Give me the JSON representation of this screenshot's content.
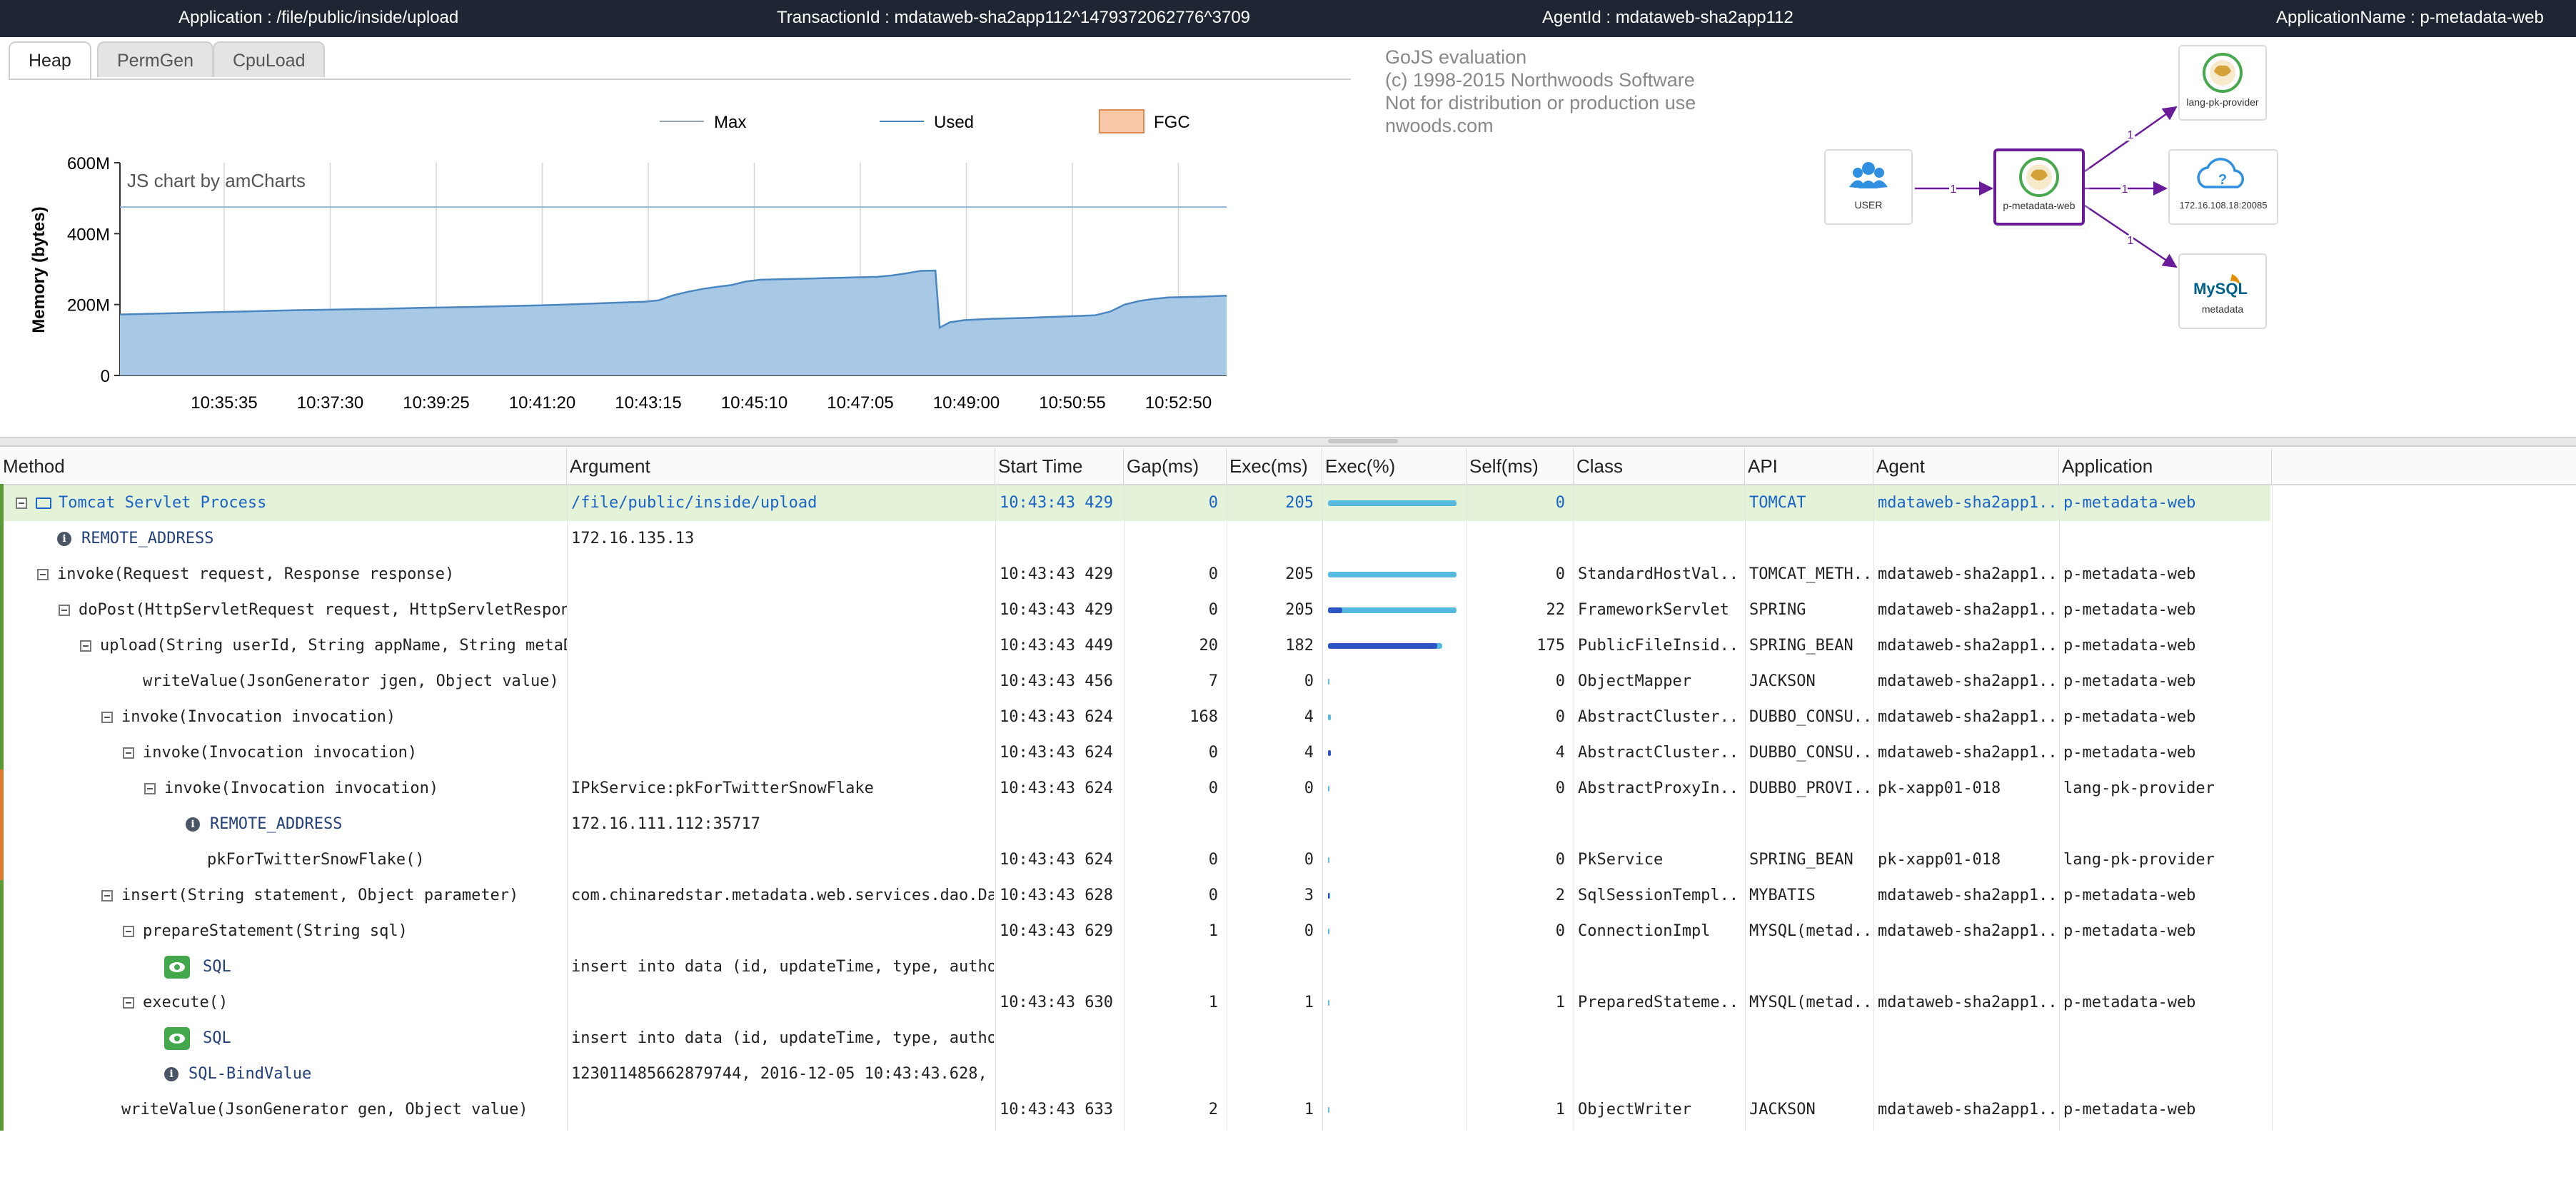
{
  "header": {
    "application": "Application : /file/public/inside/upload",
    "transaction": "TransactionId : mdataweb-sha2app112^1479372062776^3709",
    "agent": "AgentId : mdataweb-sha2app112",
    "application_name": "ApplicationName : p-metadata-web"
  },
  "tabs": [
    {
      "label": "Heap",
      "active": true
    },
    {
      "label": "PermGen",
      "active": false
    },
    {
      "label": "CpuLoad",
      "active": false
    }
  ],
  "chart_data": {
    "type": "area",
    "credit": "JS chart by amCharts",
    "ylabel": "Memory (bytes)",
    "yticks": [
      "0",
      "200M",
      "400M",
      "600M"
    ],
    "ylim": [
      0,
      600
    ],
    "xticks": [
      "10:35:35",
      "10:37:30",
      "10:39:25",
      "10:41:20",
      "10:43:15",
      "10:45:10",
      "10:47:05",
      "10:49:00",
      "10:50:55",
      "10:52:50"
    ],
    "legend": [
      {
        "name": "Max",
        "color": "#9aa6b8"
      },
      {
        "name": "Used",
        "color": "#4a86c0"
      },
      {
        "name": "FGC",
        "color": "#f8c8a8"
      }
    ],
    "max_value": 475,
    "used": [
      [
        0,
        172
      ],
      [
        3,
        175
      ],
      [
        6,
        178
      ],
      [
        9,
        181
      ],
      [
        12,
        184
      ],
      [
        15,
        186
      ],
      [
        18,
        188
      ],
      [
        21,
        191
      ],
      [
        24,
        193
      ],
      [
        27,
        196
      ],
      [
        30,
        199
      ],
      [
        32,
        202
      ],
      [
        34,
        205
      ],
      [
        36,
        208
      ],
      [
        37,
        212
      ],
      [
        38,
        226
      ],
      [
        39,
        236
      ],
      [
        40,
        244
      ],
      [
        41,
        250
      ],
      [
        42,
        255
      ],
      [
        43,
        265
      ],
      [
        44,
        270
      ],
      [
        46,
        272
      ],
      [
        48,
        274
      ],
      [
        50,
        276
      ],
      [
        52,
        278
      ],
      [
        53,
        282
      ],
      [
        54,
        288
      ],
      [
        55,
        295
      ],
      [
        56,
        296
      ],
      [
        56.3,
        135
      ],
      [
        57,
        150
      ],
      [
        58,
        156
      ],
      [
        60,
        160
      ],
      [
        62,
        162
      ],
      [
        64,
        165
      ],
      [
        66,
        168
      ],
      [
        67,
        170
      ],
      [
        68,
        180
      ],
      [
        69,
        200
      ],
      [
        70,
        210
      ],
      [
        71,
        216
      ],
      [
        72,
        220
      ],
      [
        74,
        222
      ],
      [
        76,
        225
      ]
    ],
    "x_range": [
      0,
      76
    ]
  },
  "diagram": {
    "watermark": "GoJS evaluation\n(c) 1998-2015 Northwoods Software\nNot for distribution or production use\nnwoods.com",
    "nodes": [
      {
        "id": "user",
        "label": "USER",
        "icon": "users-icon"
      },
      {
        "id": "p-metadata-web",
        "label": "p-metadata-web",
        "icon": "tomcat-icon"
      },
      {
        "id": "lang-pk-provider",
        "label": "lang-pk-provider",
        "icon": "tomcat-icon"
      },
      {
        "id": "ip",
        "label": "172.16.108.18:20085",
        "icon": "cloud-icon"
      },
      {
        "id": "mysql",
        "label": "metadata",
        "icon": "mysql-icon"
      }
    ],
    "mysql_logo": "MySQL",
    "edges": [
      {
        "from": "user",
        "to": "p-metadata-web",
        "label": "1"
      },
      {
        "from": "p-metadata-web",
        "to": "lang-pk-provider",
        "label": "1"
      },
      {
        "from": "p-metadata-web",
        "to": "ip",
        "label": "1"
      },
      {
        "from": "p-metadata-web",
        "to": "mysql",
        "label": "1"
      }
    ]
  },
  "table": {
    "columns": [
      "Method",
      "Argument",
      "Start Time",
      "Gap(ms)",
      "Exec(ms)",
      "Exec(%)",
      "Self(ms)",
      "Class",
      "API",
      "Agent",
      "Application"
    ],
    "rows": [
      {
        "indent": 0,
        "toggle": true,
        "icon": "server",
        "method": "Tomcat Servlet Process",
        "arg": "/file/public/inside/upload",
        "start": "10:43:43 429",
        "gap": "0",
        "exec": "205",
        "pct": 1.0,
        "selfpct": 0,
        "self": "0",
        "cls": "",
        "api": "TOMCAT",
        "agent": "mdataweb-sha2app1..",
        "app": "p-metadata-web",
        "hl": true
      },
      {
        "indent": 1,
        "toggle": false,
        "icon": "info",
        "method": "REMOTE_ADDRESS",
        "arg": "172.16.135.13",
        "start": "",
        "gap": "",
        "exec": "",
        "pct": null,
        "self": "",
        "cls": "",
        "api": "",
        "agent": "",
        "app": ""
      },
      {
        "indent": 1,
        "toggle": true,
        "icon": "",
        "method": "invoke(Request request, Response response)",
        "arg": "",
        "start": "10:43:43 429",
        "gap": "0",
        "exec": "205",
        "pct": 1.0,
        "selfpct": 0,
        "self": "0",
        "cls": "StandardHostVal..",
        "api": "TOMCAT_METH..",
        "agent": "mdataweb-sha2app1..",
        "app": "p-metadata-web"
      },
      {
        "indent": 2,
        "toggle": true,
        "icon": "",
        "method": "doPost(HttpServletRequest request, HttpServletResponse response)",
        "arg": "",
        "start": "10:43:43 429",
        "gap": "0",
        "exec": "205",
        "pct": 1.0,
        "selfpct": 0.11,
        "self": "22",
        "cls": "FrameworkServlet",
        "api": "SPRING",
        "agent": "mdataweb-sha2app1..",
        "app": "p-metadata-web"
      },
      {
        "indent": 3,
        "toggle": true,
        "icon": "",
        "method": "upload(String userId, String appName, String metaData)",
        "arg": "",
        "start": "10:43:43 449",
        "gap": "20",
        "exec": "182",
        "pct": 0.89,
        "selfpct": 0.85,
        "self": "175",
        "cls": "PublicFileInsid..",
        "api": "SPRING_BEAN",
        "agent": "mdataweb-sha2app1..",
        "app": "p-metadata-web"
      },
      {
        "indent": 5,
        "toggle": false,
        "icon": "",
        "method": "writeValue(JsonGenerator jgen, Object value)",
        "arg": "",
        "start": "10:43:43 456",
        "gap": "7",
        "exec": "0",
        "pct": 0.005,
        "selfpct": 0,
        "self": "0",
        "cls": "ObjectMapper",
        "api": "JACKSON",
        "agent": "mdataweb-sha2app1..",
        "app": "p-metadata-web"
      },
      {
        "indent": 4,
        "toggle": true,
        "icon": "",
        "method": "invoke(Invocation invocation)",
        "arg": "",
        "start": "10:43:43 624",
        "gap": "168",
        "exec": "4",
        "pct": 0.02,
        "selfpct": 0,
        "self": "0",
        "cls": "AbstractCluster..",
        "api": "DUBBO_CONSU..",
        "agent": "mdataweb-sha2app1..",
        "app": "p-metadata-web"
      },
      {
        "indent": 5,
        "toggle": true,
        "icon": "",
        "method": "invoke(Invocation invocation)",
        "arg": "",
        "start": "10:43:43 624",
        "gap": "0",
        "exec": "4",
        "pct": 0.02,
        "selfpct": 0.02,
        "self": "4",
        "cls": "AbstractCluster..",
        "api": "DUBBO_CONSU..",
        "agent": "mdataweb-sha2app1..",
        "app": "p-metadata-web"
      },
      {
        "indent": 6,
        "toggle": true,
        "icon": "",
        "method": "invoke(Invocation invocation)",
        "arg": "IPkService:pkForTwitterSnowFlake",
        "start": "10:43:43 624",
        "gap": "0",
        "exec": "0",
        "pct": 0.005,
        "selfpct": 0,
        "self": "0",
        "cls": "AbstractProxyIn..",
        "api": "DUBBO_PROVI..",
        "agent": "pk-xapp01-018",
        "app": "lang-pk-provider"
      },
      {
        "indent": 7,
        "toggle": false,
        "icon": "info",
        "method": "REMOTE_ADDRESS",
        "arg": "172.16.111.112:35717",
        "start": "",
        "gap": "",
        "exec": "",
        "pct": null,
        "self": "",
        "cls": "",
        "api": "",
        "agent": "",
        "app": ""
      },
      {
        "indent": 8,
        "toggle": false,
        "icon": "",
        "method": "pkForTwitterSnowFlake()",
        "arg": "",
        "start": "10:43:43 624",
        "gap": "0",
        "exec": "0",
        "pct": 0.005,
        "selfpct": 0,
        "self": "0",
        "cls": "PkService",
        "api": "SPRING_BEAN",
        "agent": "pk-xapp01-018",
        "app": "lang-pk-provider"
      },
      {
        "indent": 4,
        "toggle": true,
        "icon": "",
        "method": "insert(String statement, Object parameter)",
        "arg": "com.chinaredstar.metadata.web.services.dao.DataMapper.insert",
        "start": "10:43:43 628",
        "gap": "0",
        "exec": "3",
        "pct": 0.015,
        "selfpct": 0.01,
        "self": "2",
        "cls": "SqlSessionTempl..",
        "api": "MYBATIS",
        "agent": "mdataweb-sha2app1..",
        "app": "p-metadata-web"
      },
      {
        "indent": 5,
        "toggle": true,
        "icon": "",
        "method": "prepareStatement(String sql)",
        "arg": "",
        "start": "10:43:43 629",
        "gap": "1",
        "exec": "0",
        "pct": 0.005,
        "selfpct": 0,
        "self": "0",
        "cls": "ConnectionImpl",
        "api": "MYSQL(metad..",
        "agent": "mdataweb-sha2app1..",
        "app": "p-metadata-web"
      },
      {
        "indent": 6,
        "toggle": false,
        "icon": "eye",
        "method": "SQL",
        "arg": "insert into data (id, updateTime, type, author, content)",
        "start": "",
        "gap": "",
        "exec": "",
        "pct": null,
        "self": "",
        "cls": "",
        "api": "",
        "agent": "",
        "app": ""
      },
      {
        "indent": 5,
        "toggle": true,
        "icon": "",
        "method": "execute()",
        "arg": "",
        "start": "10:43:43 630",
        "gap": "1",
        "exec": "1",
        "pct": 0.005,
        "selfpct": 0,
        "self": "1",
        "cls": "PreparedStateme..",
        "api": "MYSQL(metad..",
        "agent": "mdataweb-sha2app1..",
        "app": "p-metadata-web"
      },
      {
        "indent": 6,
        "toggle": false,
        "icon": "eye",
        "method": "SQL",
        "arg": "insert into data (id, updateTime, type, author, content)",
        "start": "",
        "gap": "",
        "exec": "",
        "pct": null,
        "self": "",
        "cls": "",
        "api": "",
        "agent": "",
        "app": ""
      },
      {
        "indent": 6,
        "toggle": false,
        "icon": "info",
        "method": "SQL-BindValue",
        "arg": "123011485662879744, 2016-12-05 10:43:43.628,",
        "start": "",
        "gap": "",
        "exec": "",
        "pct": null,
        "self": "",
        "cls": "",
        "api": "",
        "agent": "",
        "app": ""
      },
      {
        "indent": 4,
        "toggle": false,
        "icon": "",
        "method": "writeValue(JsonGenerator gen, Object value)",
        "arg": "",
        "start": "10:43:43 633",
        "gap": "2",
        "exec": "1",
        "pct": 0.005,
        "selfpct": 0,
        "self": "1",
        "cls": "ObjectWriter",
        "api": "JACKSON",
        "agent": "mdataweb-sha2app1..",
        "app": "p-metadata-web"
      }
    ]
  }
}
